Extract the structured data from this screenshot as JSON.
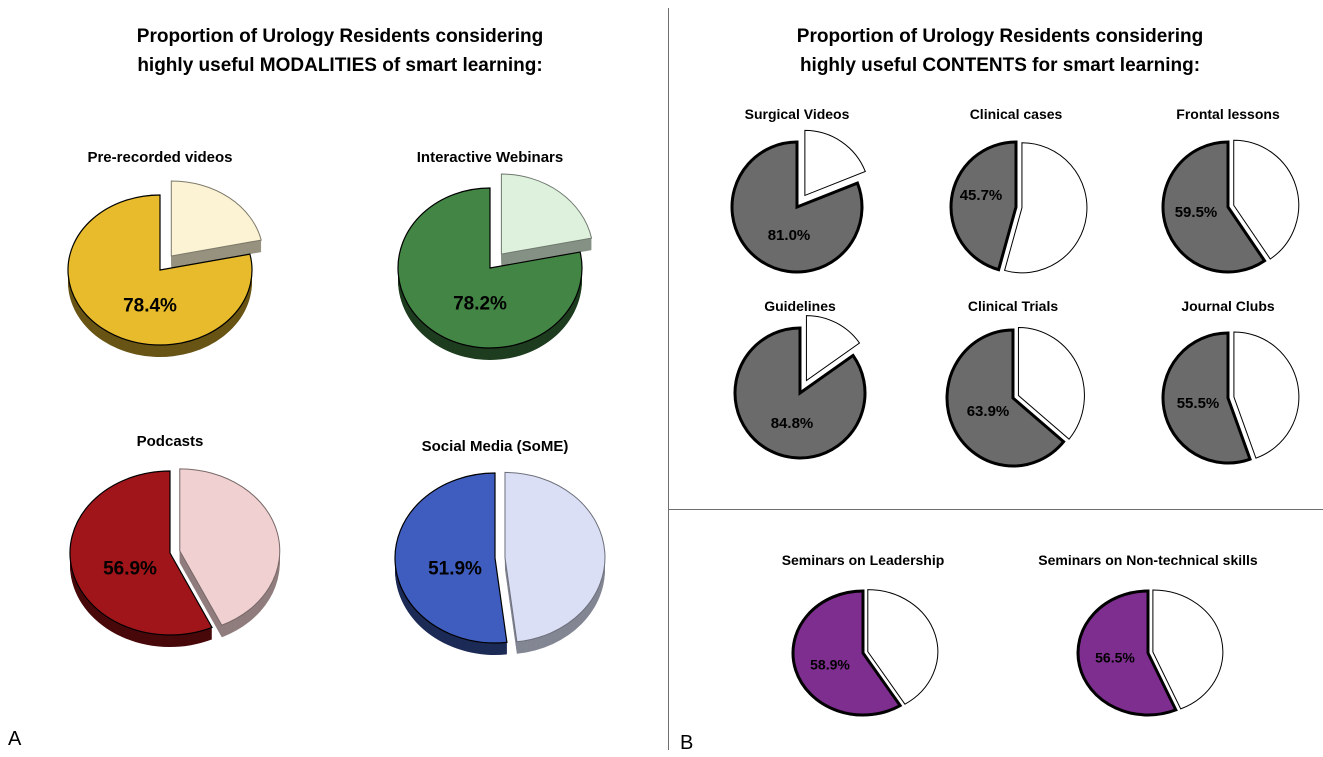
{
  "panel_a": {
    "title": "Proportion of Urology Residents considering\nhighly useful MODALITIES of smart learning:",
    "letter": "A"
  },
  "panel_b": {
    "title": "Proportion of Urology Residents considering\nhighly useful CONTENTS for smart learning:",
    "letter": "B"
  },
  "chart_data": [
    {
      "type": "pie",
      "title": "Pre-recorded videos",
      "values": [
        78.4,
        21.6
      ],
      "value_label": "78.4%",
      "color": "#E8BB2C",
      "rest_color": "#FBF3D3"
    },
    {
      "type": "pie",
      "title": "Interactive Webinars",
      "values": [
        78.2,
        21.8
      ],
      "value_label": "78.2%",
      "color": "#438544",
      "rest_color": "#DDF1DC"
    },
    {
      "type": "pie",
      "title": "Podcasts",
      "values": [
        56.9,
        43.1
      ],
      "value_label": "56.9%",
      "color": "#A01519",
      "rest_color": "#F0D0D0"
    },
    {
      "type": "pie",
      "title": "Social Media (SoME)",
      "values": [
        51.9,
        48.1
      ],
      "value_label": "51.9%",
      "color": "#3F5DBE",
      "rest_color": "#DADFF5"
    },
    {
      "type": "pie",
      "title": "Surgical Videos",
      "values": [
        81.0,
        19.0
      ],
      "value_label": "81.0%",
      "color": "#6B6B6B",
      "rest_color": "#FFFFFF"
    },
    {
      "type": "pie",
      "title": "Clinical cases",
      "values": [
        45.7,
        54.3
      ],
      "value_label": "45.7%",
      "color": "#6B6B6B",
      "rest_color": "#FFFFFF"
    },
    {
      "type": "pie",
      "title": "Frontal lessons",
      "values": [
        59.5,
        40.5
      ],
      "value_label": "59.5%",
      "color": "#6B6B6B",
      "rest_color": "#FFFFFF"
    },
    {
      "type": "pie",
      "title": "Guidelines",
      "values": [
        84.8,
        15.2
      ],
      "value_label": "84.8%",
      "color": "#6B6B6B",
      "rest_color": "#FFFFFF"
    },
    {
      "type": "pie",
      "title": "Clinical Trials",
      "values": [
        63.9,
        36.1
      ],
      "value_label": "63.9%",
      "color": "#6B6B6B",
      "rest_color": "#FFFFFF"
    },
    {
      "type": "pie",
      "title": "Journal Clubs",
      "values": [
        55.5,
        44.5
      ],
      "value_label": "55.5%",
      "color": "#6B6B6B",
      "rest_color": "#FFFFFF"
    },
    {
      "type": "pie",
      "title": "Seminars on Leadership",
      "values": [
        58.9,
        41.1
      ],
      "value_label": "58.9%",
      "color": "#7E2E8F",
      "rest_color": "#FFFFFF"
    },
    {
      "type": "pie",
      "title": "Seminars on Non-technical skills",
      "values": [
        56.5,
        43.5
      ],
      "value_label": "56.5%",
      "color": "#7E2E8F",
      "rest_color": "#FFFFFF"
    }
  ]
}
